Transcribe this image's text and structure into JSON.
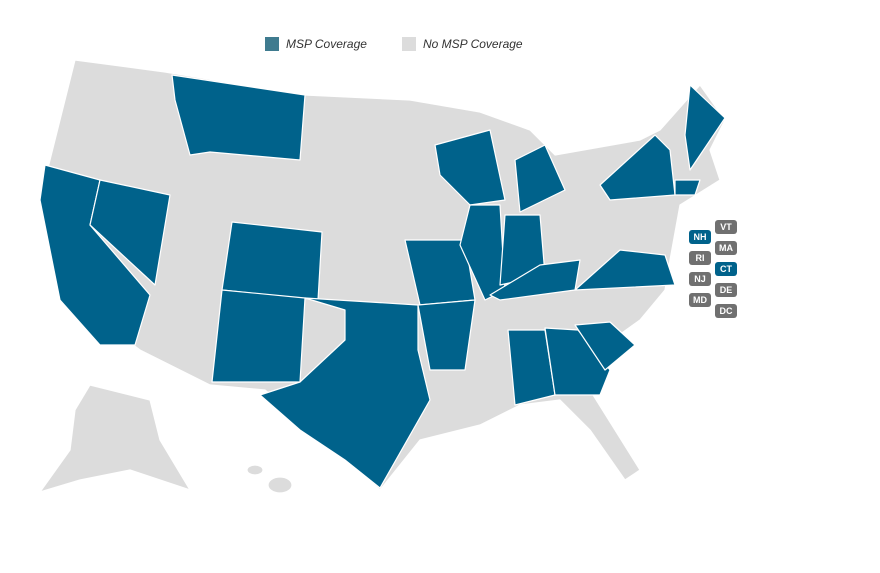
{
  "legend": [
    {
      "label": "MSP Coverage",
      "color": "#3f7b8f"
    },
    {
      "label": "No MSP Coverage",
      "color": "#dcdcdc"
    }
  ],
  "map_colors": {
    "covered": "#00628b",
    "not_covered": "#dcdcdc"
  },
  "small_state_colors": {
    "covered": "#00628b",
    "not_covered": "#707070"
  },
  "small_states": [
    {
      "label": "VT",
      "covered": false
    },
    {
      "label": "NH",
      "covered": true
    },
    {
      "label": "MA",
      "covered": false
    },
    {
      "label": "RI",
      "covered": false
    },
    {
      "label": "CT",
      "covered": true
    },
    {
      "label": "NJ",
      "covered": false
    },
    {
      "label": "DE",
      "covered": false
    },
    {
      "label": "MD",
      "covered": false
    },
    {
      "label": "DC",
      "covered": false
    }
  ]
}
